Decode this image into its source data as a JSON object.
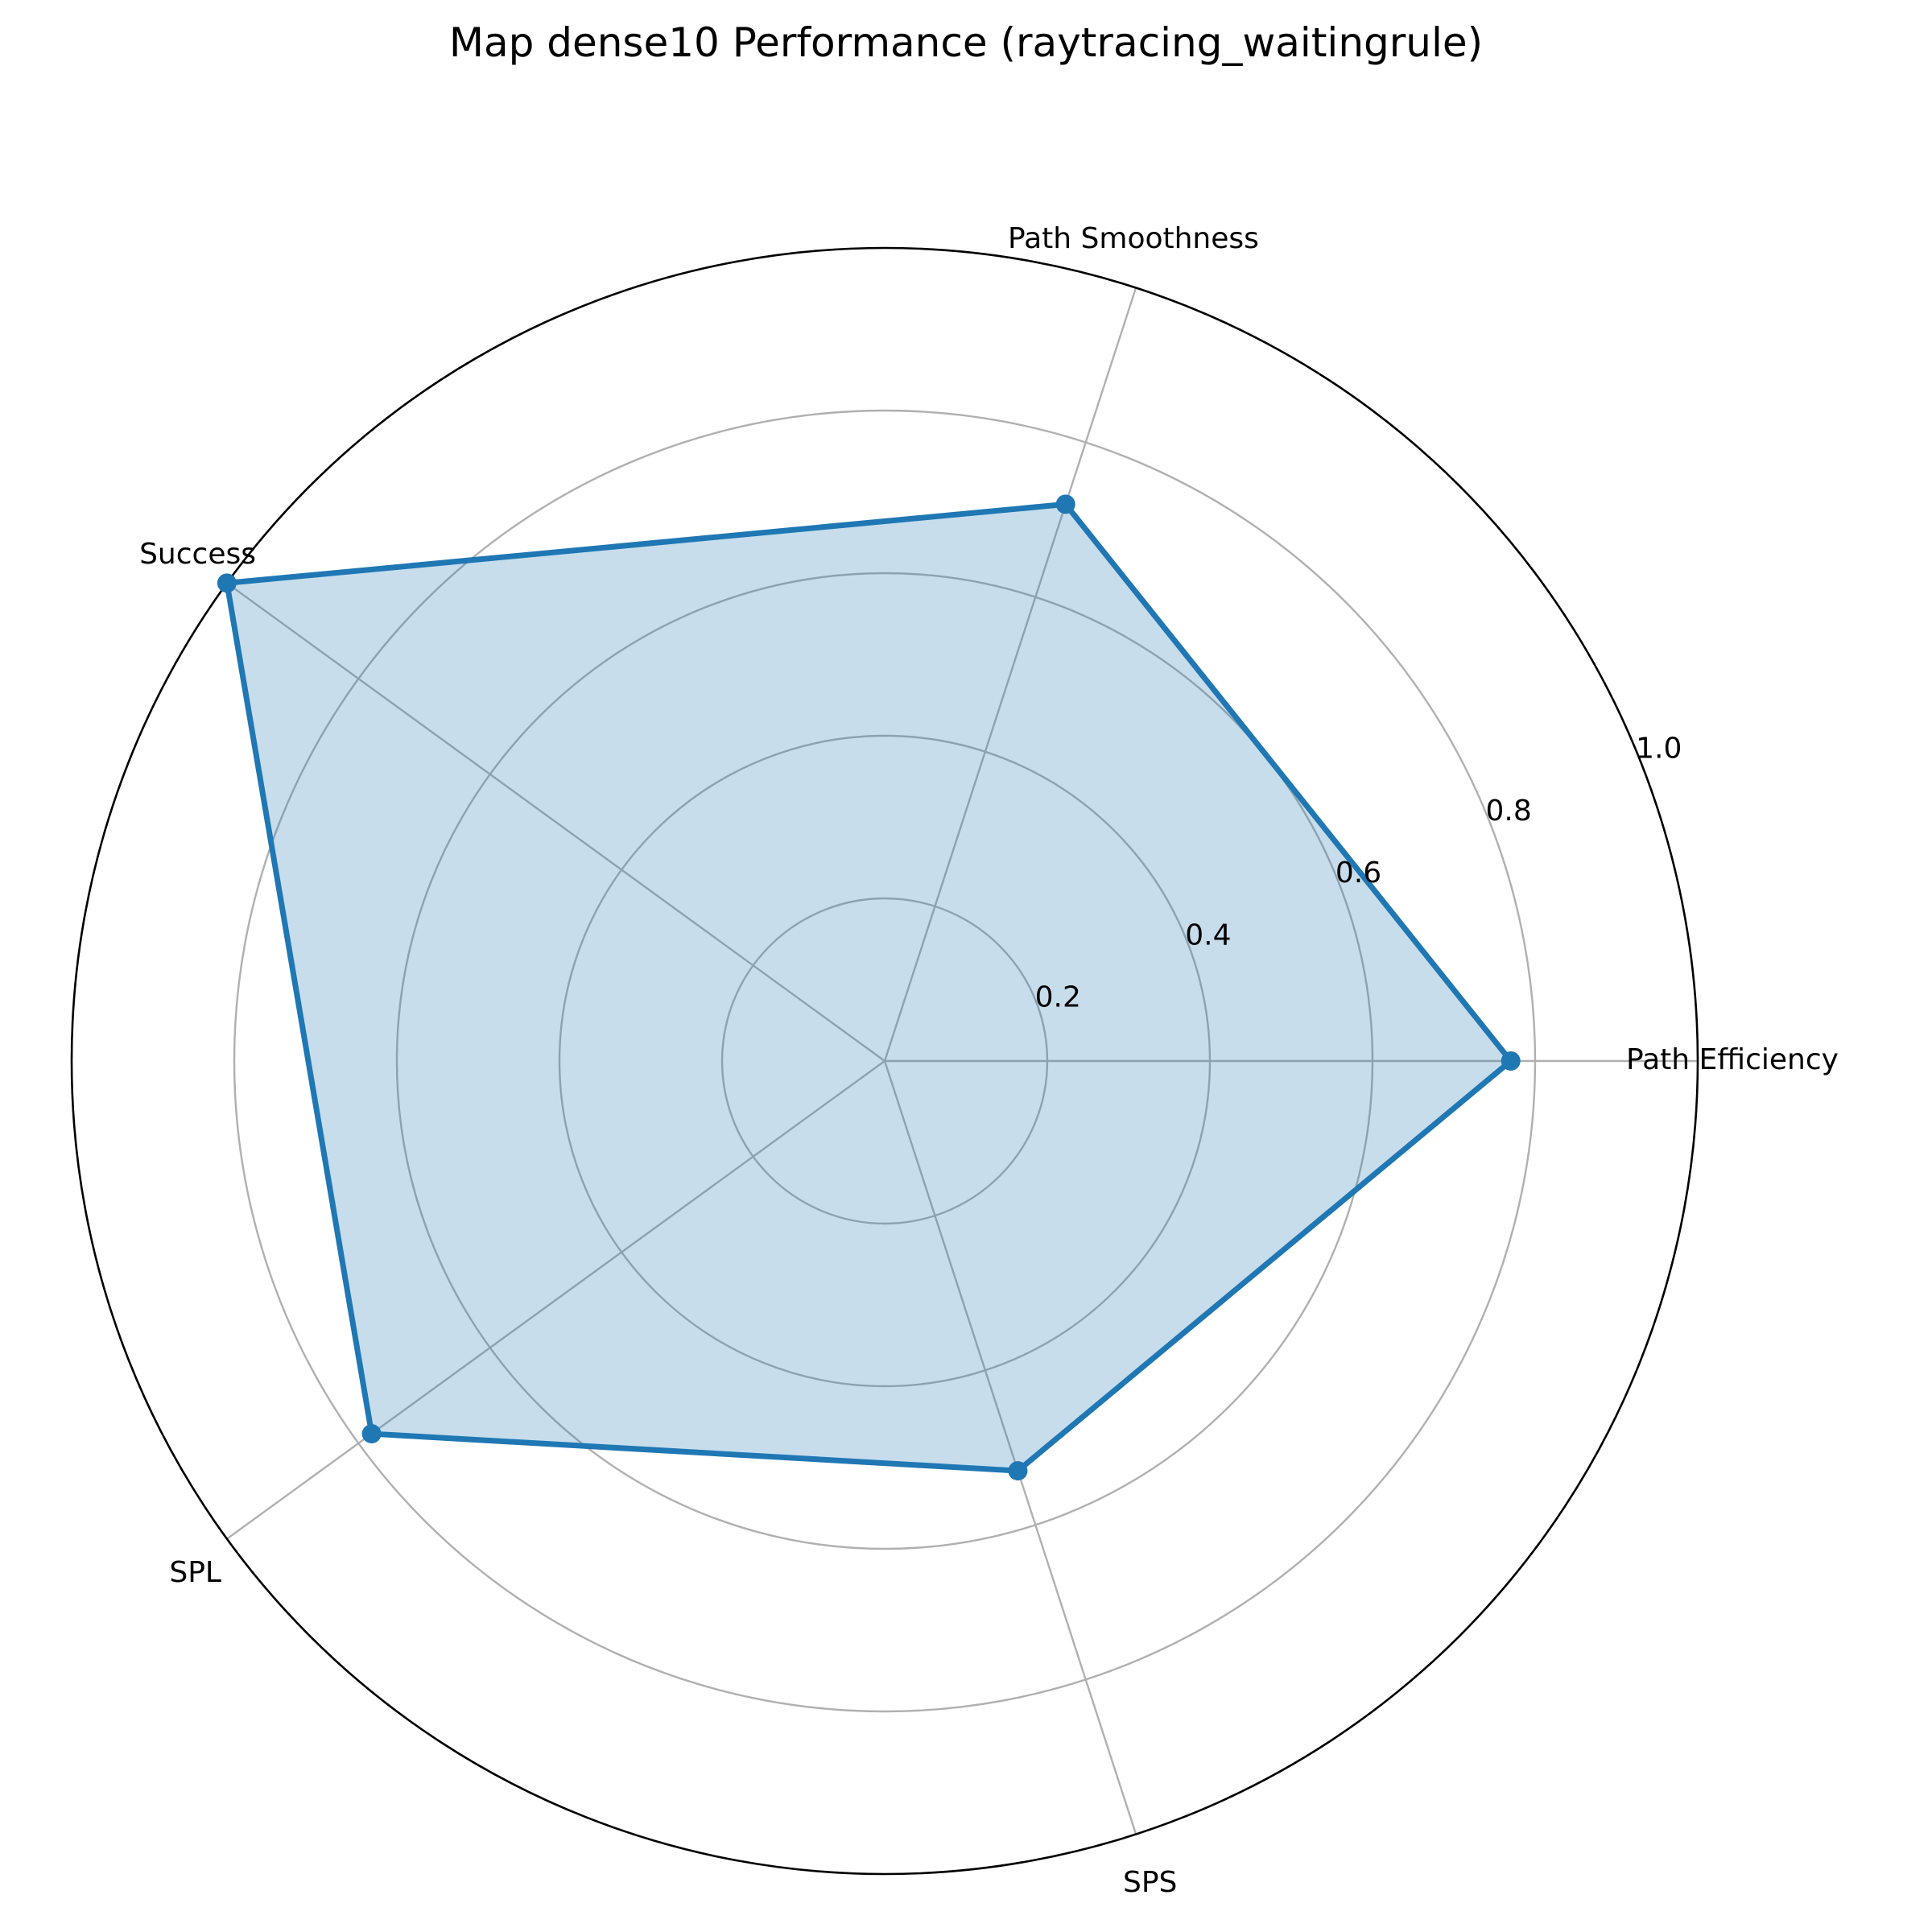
{
  "chart_data": {
    "type": "radar",
    "title": "Map dense10 Performance (raytracing_waitingrule)",
    "categories": [
      "Path Efficiency",
      "Path Smoothness",
      "Success",
      "SPL",
      "SPS"
    ],
    "series": [
      {
        "values": [
          0.77,
          0.72,
          1.0,
          0.78,
          0.53
        ],
        "color": "#1f77b4"
      }
    ],
    "rlim": [
      0,
      1.0
    ],
    "r_ticks": [
      0.2,
      0.4,
      0.6,
      0.8,
      1.0
    ],
    "r_tick_labels": [
      "0.2",
      "0.4",
      "0.6",
      "0.8",
      "1.0"
    ],
    "grid": true,
    "fill_opacity": 0.25
  }
}
